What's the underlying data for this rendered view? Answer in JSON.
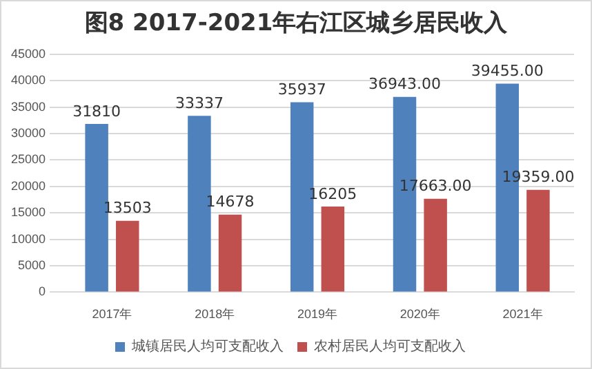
{
  "chart_data": {
    "type": "bar",
    "title": "图8  2017-2021年右江区城乡居民收入",
    "categories": [
      "2017年",
      "2018年",
      "2019年",
      "2020年",
      "2021年"
    ],
    "series": [
      {
        "name": "城镇居民人均可支配收入",
        "color": "#4f81bd",
        "values": [
          31810,
          33337,
          35937,
          36943,
          39455
        ],
        "value_labels": [
          "31810",
          "33337",
          "35937",
          "36943.00",
          "39455.00"
        ]
      },
      {
        "name": "农村居民人均可支配收入",
        "color": "#c0504d",
        "values": [
          13503,
          14678,
          16205,
          17663,
          19359
        ],
        "value_labels": [
          "13503",
          "14678",
          "16205",
          "17663.00",
          "19359.00"
        ]
      }
    ],
    "ylim": [
      0,
      45000
    ],
    "yticks": [
      0,
      5000,
      10000,
      15000,
      20000,
      25000,
      30000,
      35000,
      40000,
      45000
    ],
    "grid": "y",
    "legend": "bottom"
  }
}
